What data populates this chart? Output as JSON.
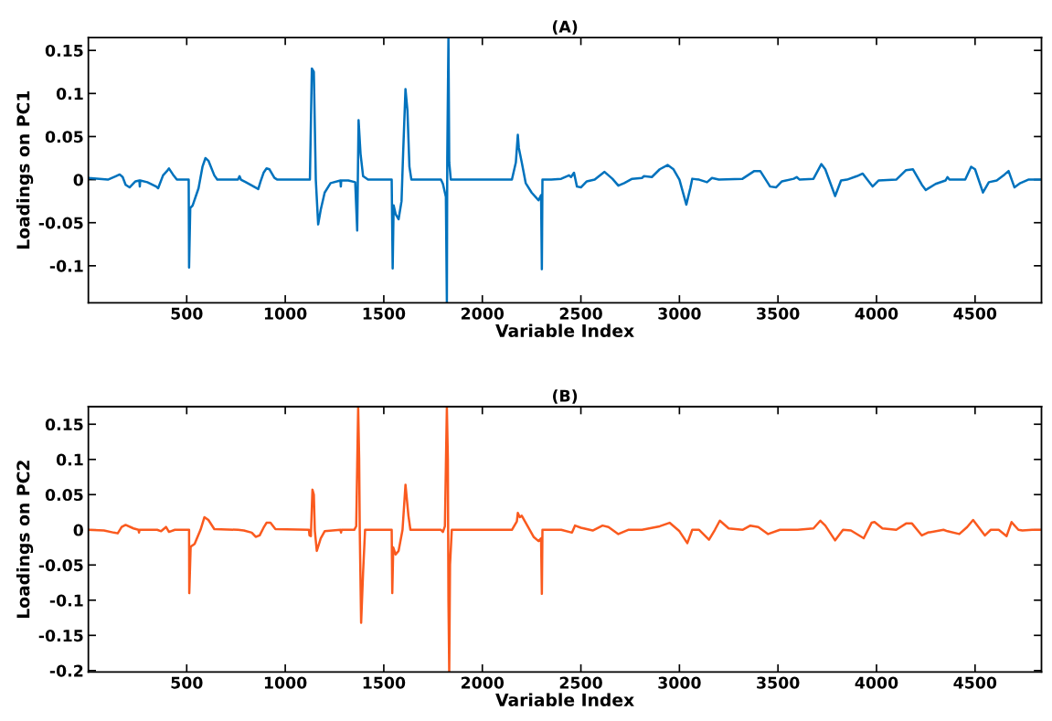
{
  "chart_data": [
    {
      "type": "line",
      "title": "(A)",
      "xlabel": "Variable Index",
      "ylabel": "Loadings on PC1",
      "xlim": [
        1,
        4837
      ],
      "ylim": [
        -0.143,
        0.165
      ],
      "xticks": [
        500,
        1000,
        1500,
        2000,
        2500,
        3000,
        3500,
        4000,
        4500
      ],
      "yticks": [
        -0.1,
        -0.05,
        0,
        0.05,
        0.1,
        0.15
      ],
      "grid": false,
      "marker": "none",
      "line_style": "solid",
      "series": [
        {
          "color": "#0072bd",
          "x": [
            1,
            100,
            140,
            160,
            175,
            190,
            210,
            240,
            260,
            262,
            264,
            300,
            345,
            355,
            380,
            400,
            410,
            430,
            450,
            510,
            512,
            518,
            530,
            560,
            580,
            595,
            610,
            640,
            655,
            760,
            768,
            775,
            800,
            863,
            875,
            890,
            905,
            920,
            945,
            960,
            1125,
            1135,
            1145,
            1155,
            1167,
            1180,
            1200,
            1230,
            1280,
            1282,
            1284,
            1320,
            1355,
            1365,
            1372,
            1382,
            1395,
            1420,
            1540,
            1545,
            1550,
            1560,
            1575,
            1590,
            1598,
            1610,
            1620,
            1630,
            1640,
            1790,
            1800,
            1815,
            1820,
            1822,
            1828,
            1832,
            1840,
            2150,
            2170,
            2180,
            2185,
            2200,
            2220,
            2250,
            2285,
            2298,
            2302,
            2305,
            2350,
            2400,
            2440,
            2450,
            2465,
            2480,
            2500,
            2530,
            2570,
            2620,
            2660,
            2690,
            2720,
            2760,
            2810,
            2820,
            2860,
            2900,
            2940,
            2970,
            3000,
            3035,
            3055,
            3065,
            3100,
            3140,
            3165,
            3200,
            3320,
            3380,
            3410,
            3460,
            3490,
            3520,
            3580,
            3595,
            3610,
            3680,
            3720,
            3740,
            3790,
            3820,
            3850,
            3900,
            3930,
            3980,
            4010,
            4100,
            4150,
            4185,
            4230,
            4250,
            4300,
            4350,
            4360,
            4370,
            4450,
            4480,
            4500,
            4540,
            4570,
            4610,
            4650,
            4670,
            4700,
            4730,
            4770,
            4837
          ],
          "values": [
            0.002,
            0.0,
            0.004,
            0.006,
            0.003,
            -0.006,
            -0.009,
            -0.002,
            -0.001,
            -0.008,
            -0.001,
            -0.003,
            -0.008,
            -0.01,
            0.005,
            0.01,
            0.013,
            0.006,
            0.0,
            0.0,
            -0.102,
            -0.033,
            -0.03,
            -0.01,
            0.015,
            0.025,
            0.022,
            0.005,
            0.0,
            0.0,
            0.004,
            0.0,
            -0.003,
            -0.011,
            -0.002,
            0.008,
            0.013,
            0.012,
            0.002,
            0.0,
            0.0,
            0.129,
            0.125,
            0.0,
            -0.052,
            -0.035,
            -0.015,
            -0.004,
            -0.001,
            -0.008,
            -0.001,
            -0.001,
            -0.003,
            -0.059,
            0.069,
            0.03,
            0.004,
            0.0,
            0.0,
            -0.103,
            -0.03,
            -0.04,
            -0.046,
            -0.025,
            0.03,
            0.105,
            0.08,
            0.015,
            0.0,
            0.0,
            -0.005,
            -0.02,
            -0.143,
            0.025,
            0.165,
            0.02,
            0.0,
            0.0,
            0.02,
            0.052,
            0.037,
            0.02,
            -0.004,
            -0.015,
            -0.024,
            -0.018,
            -0.104,
            0.0,
            0.0,
            0.001,
            0.005,
            0.003,
            0.008,
            -0.008,
            -0.009,
            -0.002,
            0.0,
            0.009,
            0.001,
            -0.007,
            -0.004,
            0.001,
            0.002,
            0.004,
            0.003,
            0.012,
            0.017,
            0.012,
            0.0,
            -0.029,
            -0.01,
            0.001,
            0.0,
            -0.003,
            0.002,
            0.0,
            0.001,
            0.01,
            0.01,
            -0.008,
            -0.009,
            -0.002,
            0.001,
            0.003,
            0.0,
            0.001,
            0.018,
            0.012,
            -0.019,
            -0.001,
            0.0,
            0.004,
            0.007,
            -0.008,
            -0.001,
            0.0,
            0.011,
            0.012,
            -0.006,
            -0.012,
            -0.005,
            -0.001,
            0.003,
            0.0,
            0.0,
            0.015,
            0.012,
            -0.015,
            -0.003,
            -0.001,
            0.006,
            0.01,
            -0.009,
            -0.004,
            0.0,
            0.0
          ]
        }
      ]
    },
    {
      "type": "line",
      "title": "(B)",
      "xlabel": "Variable Index",
      "ylabel": "Loadings on PC2",
      "xlim": [
        1,
        4837
      ],
      "ylim": [
        -0.202,
        0.175
      ],
      "xticks": [
        500,
        1000,
        1500,
        2000,
        2500,
        3000,
        3500,
        4000,
        4500
      ],
      "yticks": [
        -0.2,
        -0.15,
        -0.1,
        -0.05,
        0,
        0.05,
        0.1,
        0.15
      ],
      "grid": false,
      "marker": "none",
      "line_style": "solid",
      "series": [
        {
          "color": "#fa5a1e",
          "x": [
            1,
            80,
            130,
            150,
            170,
            190,
            230,
            255,
            258,
            261,
            300,
            350,
            370,
            395,
            410,
            440,
            512,
            513,
            520,
            540,
            570,
            590,
            610,
            640,
            760,
            790,
            830,
            850,
            870,
            890,
            905,
            925,
            950,
            1120,
            1123,
            1130,
            1138,
            1145,
            1150,
            1160,
            1180,
            1200,
            1280,
            1283,
            1286,
            1350,
            1360,
            1370,
            1375,
            1378,
            1385,
            1395,
            1405,
            1540,
            1543,
            1548,
            1560,
            1575,
            1595,
            1610,
            1625,
            1635,
            1790,
            1800,
            1810,
            1820,
            1825,
            1828,
            1832,
            1836,
            1845,
            2150,
            2175,
            2180,
            2190,
            2200,
            2230,
            2260,
            2285,
            2298,
            2302,
            2305,
            2400,
            2455,
            2470,
            2500,
            2560,
            2610,
            2640,
            2690,
            2740,
            2810,
            2900,
            2950,
            3000,
            3040,
            3065,
            3100,
            3150,
            3180,
            3205,
            3250,
            3320,
            3360,
            3400,
            3450,
            3510,
            3600,
            3680,
            3715,
            3740,
            3790,
            3830,
            3870,
            3935,
            3975,
            3990,
            4030,
            4100,
            4150,
            4180,
            4230,
            4260,
            4340,
            4360,
            4420,
            4460,
            4490,
            4550,
            4580,
            4620,
            4660,
            4685,
            4720,
            4740,
            4790,
            4837
          ],
          "values": [
            0.0,
            -0.001,
            -0.004,
            -0.005,
            0.004,
            0.007,
            0.002,
            0.0,
            -0.004,
            0.0,
            0.0,
            0.0,
            -0.002,
            0.004,
            -0.003,
            0.0,
            0.0,
            -0.09,
            -0.024,
            -0.02,
            0.0,
            0.018,
            0.014,
            0.001,
            0.0,
            -0.001,
            -0.004,
            -0.01,
            -0.008,
            0.003,
            0.01,
            0.01,
            0.001,
            0.0,
            -0.008,
            -0.009,
            0.057,
            0.05,
            -0.001,
            -0.03,
            -0.012,
            -0.002,
            0.0,
            -0.004,
            0.0,
            0.0,
            0.005,
            0.174,
            0.1,
            0.0,
            -0.132,
            -0.06,
            0.0,
            0.0,
            -0.09,
            -0.025,
            -0.035,
            -0.03,
            0.0,
            0.064,
            0.02,
            0.0,
            0.0,
            -0.003,
            0.005,
            0.174,
            0.1,
            -0.1,
            -0.202,
            -0.05,
            0.0,
            0.0,
            0.012,
            0.024,
            0.018,
            0.02,
            0.005,
            -0.01,
            -0.016,
            -0.012,
            -0.091,
            0.0,
            0.0,
            -0.004,
            0.006,
            0.003,
            -0.001,
            0.006,
            0.004,
            -0.006,
            0.0,
            0.0,
            0.005,
            0.01,
            -0.002,
            -0.019,
            0.0,
            0.0,
            -0.014,
            0.0,
            0.013,
            0.002,
            0.0,
            0.006,
            0.004,
            -0.006,
            0.0,
            0.0,
            0.002,
            0.013,
            0.006,
            -0.015,
            0.0,
            -0.001,
            -0.012,
            0.01,
            0.011,
            0.002,
            0.0,
            0.009,
            0.009,
            -0.008,
            -0.004,
            0.0,
            -0.002,
            -0.006,
            0.004,
            0.014,
            -0.008,
            0.0,
            0.0,
            -0.009,
            0.011,
            0.0,
            -0.001,
            0.0,
            0.0
          ]
        }
      ]
    }
  ]
}
